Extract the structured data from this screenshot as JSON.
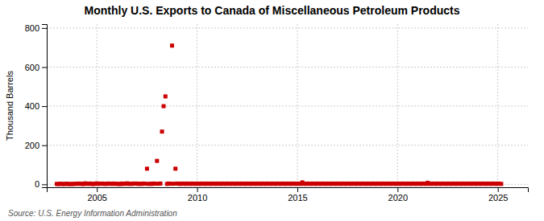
{
  "chart_data": {
    "type": "scatter",
    "title": "Monthly U.S. Exports to Canada of Miscellaneous Petroleum Products",
    "ylabel": "Thousand Barrels",
    "source": "Source: U.S. Energy Information Administration",
    "color": "#cc0000",
    "marker": "square",
    "grid": true,
    "xlim": [
      2002.5,
      2026.5
    ],
    "ylim": [
      -15,
      820
    ],
    "xticks": [
      2005,
      2010,
      2015,
      2020,
      2025
    ],
    "yticks": [
      0,
      200,
      400,
      600,
      800
    ],
    "x": [
      2003.0,
      2003.08,
      2003.17,
      2003.25,
      2003.33,
      2003.42,
      2003.5,
      2003.58,
      2003.67,
      2003.75,
      2003.83,
      2003.92,
      2004.0,
      2004.08,
      2004.17,
      2004.25,
      2004.33,
      2004.42,
      2004.5,
      2004.58,
      2004.67,
      2004.75,
      2004.83,
      2004.92,
      2005.0,
      2005.08,
      2005.17,
      2005.25,
      2005.33,
      2005.42,
      2005.5,
      2005.58,
      2005.67,
      2005.75,
      2005.83,
      2005.92,
      2006.0,
      2006.08,
      2006.17,
      2006.25,
      2006.33,
      2006.42,
      2006.5,
      2006.58,
      2006.67,
      2006.75,
      2006.83,
      2006.92,
      2007.0,
      2007.08,
      2007.17,
      2007.25,
      2007.33,
      2007.42,
      2007.5,
      2007.58,
      2007.67,
      2007.75,
      2007.83,
      2007.92,
      2008.0,
      2008.08,
      2008.17,
      2008.25,
      2008.33,
      2008.42,
      2008.5,
      2008.58,
      2008.67,
      2008.75,
      2008.83,
      2008.92,
      2009.0,
      2009.08,
      2009.17,
      2009.25,
      2009.33,
      2009.42,
      2009.5,
      2009.58,
      2009.67,
      2009.75,
      2009.83,
      2009.92,
      2010.0,
      2010.08,
      2010.17,
      2010.25,
      2010.33,
      2010.42,
      2010.5,
      2010.58,
      2010.67,
      2010.75,
      2010.83,
      2010.92,
      2011.0,
      2011.08,
      2011.17,
      2011.25,
      2011.33,
      2011.42,
      2011.5,
      2011.58,
      2011.67,
      2011.75,
      2011.83,
      2011.92,
      2012.0,
      2012.08,
      2012.17,
      2012.25,
      2012.33,
      2012.42,
      2012.5,
      2012.58,
      2012.67,
      2012.75,
      2012.83,
      2012.92,
      2013.0,
      2013.08,
      2013.17,
      2013.25,
      2013.33,
      2013.42,
      2013.5,
      2013.58,
      2013.67,
      2013.75,
      2013.83,
      2013.92,
      2014.0,
      2014.08,
      2014.17,
      2014.25,
      2014.33,
      2014.42,
      2014.5,
      2014.58,
      2014.67,
      2014.75,
      2014.83,
      2014.92,
      2015.0,
      2015.08,
      2015.17,
      2015.25,
      2015.33,
      2015.42,
      2015.5,
      2015.58,
      2015.67,
      2015.75,
      2015.83,
      2015.92,
      2016.0,
      2016.08,
      2016.17,
      2016.25,
      2016.33,
      2016.42,
      2016.5,
      2016.58,
      2016.67,
      2016.75,
      2016.83,
      2016.92,
      2017.0,
      2017.08,
      2017.17,
      2017.25,
      2017.33,
      2017.42,
      2017.5,
      2017.58,
      2017.67,
      2017.75,
      2017.83,
      2017.92,
      2018.0,
      2018.08,
      2018.17,
      2018.25,
      2018.33,
      2018.42,
      2018.5,
      2018.58,
      2018.67,
      2018.75,
      2018.83,
      2018.92,
      2019.0,
      2019.08,
      2019.17,
      2019.25,
      2019.33,
      2019.42,
      2019.5,
      2019.58,
      2019.67,
      2019.75,
      2019.83,
      2019.92,
      2020.0,
      2020.08,
      2020.17,
      2020.25,
      2020.33,
      2020.42,
      2020.5,
      2020.58,
      2020.67,
      2020.75,
      2020.83,
      2020.92,
      2021.0,
      2021.08,
      2021.17,
      2021.25,
      2021.33,
      2021.42,
      2021.5,
      2021.58,
      2021.67,
      2021.75,
      2021.83,
      2021.92,
      2022.0,
      2022.08,
      2022.17,
      2022.25,
      2022.33,
      2022.42,
      2022.5,
      2022.58,
      2022.67,
      2022.75,
      2022.83,
      2022.92,
      2023.0,
      2023.08,
      2023.17,
      2023.25,
      2023.33,
      2023.42,
      2023.5,
      2023.58,
      2023.67,
      2023.75,
      2023.83,
      2023.92,
      2024.0,
      2024.08,
      2024.17,
      2024.25,
      2024.33,
      2024.42,
      2024.5,
      2024.58,
      2024.67,
      2024.75,
      2024.83,
      2024.92,
      2025.0,
      2025.08,
      2025.17
    ],
    "values": [
      2,
      1,
      3,
      2,
      1,
      2,
      3,
      1,
      2,
      1,
      2,
      3,
      2,
      4,
      2,
      3,
      1,
      5,
      3,
      2,
      4,
      2,
      1,
      3,
      5,
      2,
      3,
      4,
      2,
      3,
      2,
      4,
      3,
      2,
      4,
      2,
      3,
      2,
      1,
      4,
      2,
      3,
      5,
      2,
      3,
      2,
      4,
      3,
      4,
      2,
      3,
      2,
      4,
      3,
      80,
      2,
      3,
      2,
      4,
      3,
      120,
      3,
      4,
      270,
      400,
      450,
      2,
      4,
      3,
      710,
      3,
      80,
      4,
      3,
      2,
      4,
      3,
      2,
      4,
      3,
      2,
      4,
      3,
      2,
      4,
      3,
      2,
      4,
      3,
      2,
      4,
      3,
      2,
      4,
      3,
      2,
      4,
      3,
      2,
      4,
      3,
      2,
      4,
      3,
      2,
      4,
      3,
      2,
      4,
      3,
      2,
      4,
      3,
      2,
      4,
      3,
      2,
      4,
      3,
      2,
      4,
      3,
      2,
      4,
      3,
      2,
      4,
      3,
      2,
      4,
      3,
      2,
      4,
      3,
      2,
      4,
      3,
      2,
      4,
      3,
      2,
      4,
      3,
      2,
      4,
      3,
      2,
      10,
      3,
      2,
      4,
      3,
      2,
      4,
      3,
      2,
      4,
      3,
      2,
      4,
      3,
      2,
      4,
      3,
      2,
      4,
      3,
      2,
      4,
      3,
      2,
      4,
      3,
      2,
      4,
      3,
      2,
      4,
      3,
      2,
      4,
      3,
      2,
      4,
      3,
      2,
      4,
      3,
      2,
      4,
      3,
      2,
      4,
      3,
      2,
      4,
      3,
      2,
      4,
      3,
      2,
      4,
      3,
      2,
      4,
      3,
      2,
      4,
      3,
      2,
      4,
      3,
      2,
      4,
      3,
      2,
      4,
      3,
      2,
      4,
      3,
      2,
      8,
      3,
      2,
      4,
      3,
      2,
      4,
      3,
      2,
      4,
      3,
      2,
      4,
      3,
      2,
      4,
      3,
      2,
      4,
      3,
      2,
      4,
      3,
      2,
      4,
      3,
      2,
      4,
      3,
      2,
      4,
      3,
      2,
      4,
      3,
      2,
      4,
      3,
      2,
      4,
      3,
      2,
      4,
      3,
      2
    ]
  }
}
